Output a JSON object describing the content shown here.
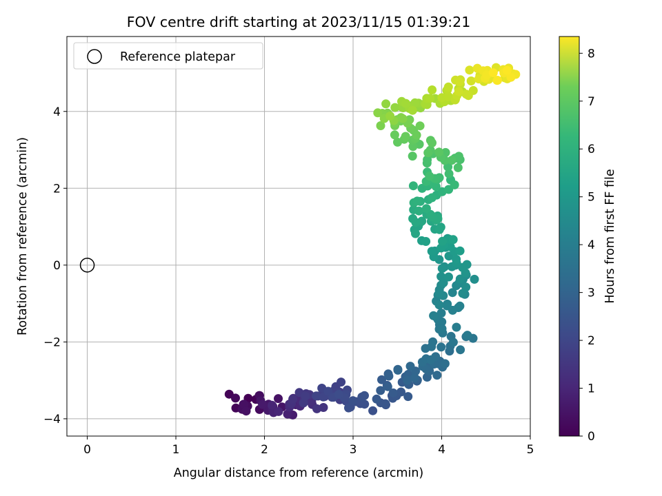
{
  "chart_data": {
    "type": "scatter",
    "title": "FOV centre drift starting at 2023/11/15 01:39:21",
    "xlabel": "Angular distance from reference (arcmin)",
    "ylabel": "Rotation from reference (arcmin)",
    "xlim": [
      -0.23,
      5.0
    ],
    "ylim": [
      -4.45,
      5.95
    ],
    "xticks": [
      0,
      1,
      2,
      3,
      4,
      5
    ],
    "yticks": [
      -4,
      -2,
      0,
      2,
      4
    ],
    "xtick_labels": [
      "0",
      "1",
      "2",
      "3",
      "4",
      "5"
    ],
    "ytick_labels": [
      "−4",
      "−2",
      "0",
      "2",
      "4"
    ],
    "grid": true,
    "legend": {
      "placement": "top-left",
      "entries": [
        "Reference platepar"
      ]
    },
    "colormap": "viridis",
    "colorbar": {
      "label": "Hours from first FF file",
      "range": [
        0,
        8.35
      ],
      "ticks": [
        0,
        1,
        2,
        3,
        4,
        5,
        6,
        7,
        8
      ],
      "tick_labels": [
        "0",
        "1",
        "2",
        "3",
        "4",
        "5",
        "6",
        "7",
        "8"
      ]
    },
    "reference_point": {
      "x": 0,
      "y": 0
    },
    "path_keyframes": [
      {
        "x": 1.72,
        "y": -3.5,
        "t": 0.0
      },
      {
        "x": 2.1,
        "y": -3.7,
        "t": 0.6
      },
      {
        "x": 2.45,
        "y": -3.6,
        "t": 1.2
      },
      {
        "x": 2.75,
        "y": -3.2,
        "t": 1.7
      },
      {
        "x": 3.15,
        "y": -3.6,
        "t": 2.1
      },
      {
        "x": 3.55,
        "y": -3.05,
        "t": 2.5
      },
      {
        "x": 3.8,
        "y": -2.6,
        "t": 2.9
      },
      {
        "x": 4.15,
        "y": -1.95,
        "t": 3.3
      },
      {
        "x": 4.05,
        "y": -0.9,
        "t": 3.8
      },
      {
        "x": 4.2,
        "y": -0.25,
        "t": 4.2
      },
      {
        "x": 4.05,
        "y": 0.5,
        "t": 4.6
      },
      {
        "x": 3.75,
        "y": 1.1,
        "t": 5.0
      },
      {
        "x": 3.85,
        "y": 1.8,
        "t": 5.4
      },
      {
        "x": 4.05,
        "y": 2.6,
        "t": 5.9
      },
      {
        "x": 3.7,
        "y": 3.3,
        "t": 6.3
      },
      {
        "x": 3.4,
        "y": 3.9,
        "t": 6.8
      },
      {
        "x": 3.8,
        "y": 4.2,
        "t": 7.2
      },
      {
        "x": 4.2,
        "y": 4.5,
        "t": 7.6
      },
      {
        "x": 4.55,
        "y": 5.0,
        "t": 8.0
      },
      {
        "x": 4.72,
        "y": 4.85,
        "t": 8.35
      }
    ],
    "n_points": 360,
    "marker_color_encoding": "hours_from_first_ff_file"
  }
}
